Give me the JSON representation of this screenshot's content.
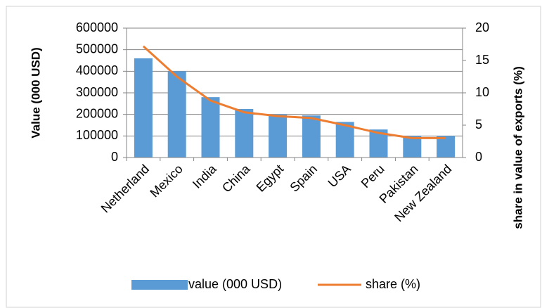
{
  "chart_data": {
    "type": "bar_line",
    "categories": [
      "Netherland",
      "Mexico",
      "India",
      "China",
      "Egypt",
      "Spain",
      "USA",
      "Peru",
      "Pakistan",
      "New Zealand"
    ],
    "series": [
      {
        "name": "value (000 USD)",
        "type": "bar",
        "color": "#5b9bd5",
        "axis": "y",
        "values": [
          460000,
          400000,
          280000,
          225000,
          200000,
          195000,
          165000,
          130000,
          100000,
          100000
        ]
      },
      {
        "name": "share (%)",
        "type": "line",
        "color": "#ed7d31",
        "axis": "y2",
        "values": [
          17.2,
          12.5,
          8.8,
          7,
          6.4,
          6.1,
          5,
          3.8,
          3,
          3
        ]
      }
    ],
    "ylabel": "Value (000 USD)",
    "y2label": "share in value of exports (%)",
    "ylim": [
      0,
      600000
    ],
    "yticks": [
      0,
      100000,
      200000,
      300000,
      400000,
      500000,
      600000
    ],
    "y2lim": [
      0,
      20
    ],
    "y2ticks": [
      0,
      5,
      10,
      15,
      20
    ],
    "grid": true,
    "legend": "bottom"
  }
}
